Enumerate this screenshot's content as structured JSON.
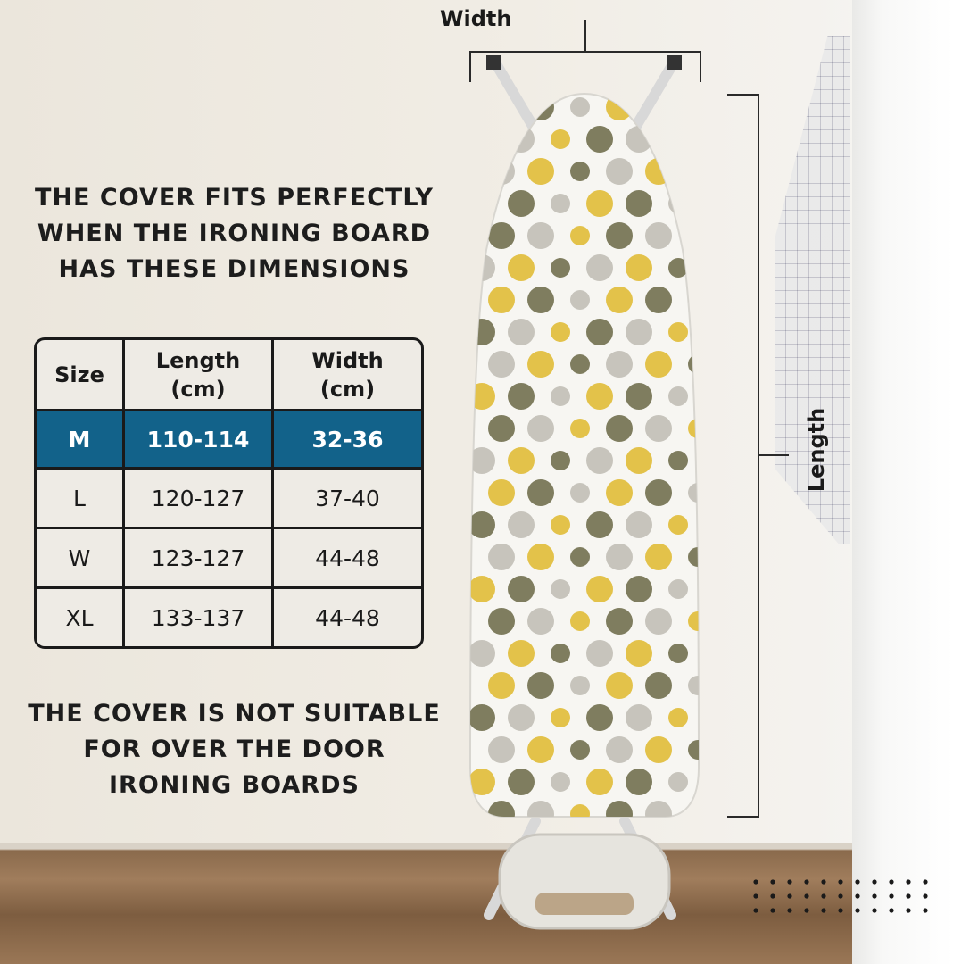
{
  "heading_top": [
    "THE COVER FITS PERFECTLY",
    "WHEN THE IRONING BOARD",
    "HAS THESE DIMENSIONS"
  ],
  "table": {
    "headers": [
      [
        "Size"
      ],
      [
        "Length",
        "(cm)"
      ],
      [
        "Width",
        "(cm)"
      ]
    ],
    "highlight_color": "#12628a",
    "rows": [
      {
        "size": "M",
        "length": "110-114",
        "width": "32-36",
        "highlighted": true
      },
      {
        "size": "L",
        "length": "120-127",
        "width": "37-40"
      },
      {
        "size": "W",
        "length": "123-127",
        "width": "44-48"
      },
      {
        "size": "XL",
        "length": "133-137",
        "width": "44-48"
      }
    ]
  },
  "heading_bottom": [
    "THE COVER IS NOT SUITABLE",
    "FOR OVER THE DOOR",
    "IRONING BOARDS"
  ],
  "dimensions": {
    "width_label": "Width",
    "length_label": "Length"
  },
  "pattern_colors": [
    "#e3c24a",
    "#7f7d5f",
    "#c7c4bc"
  ]
}
